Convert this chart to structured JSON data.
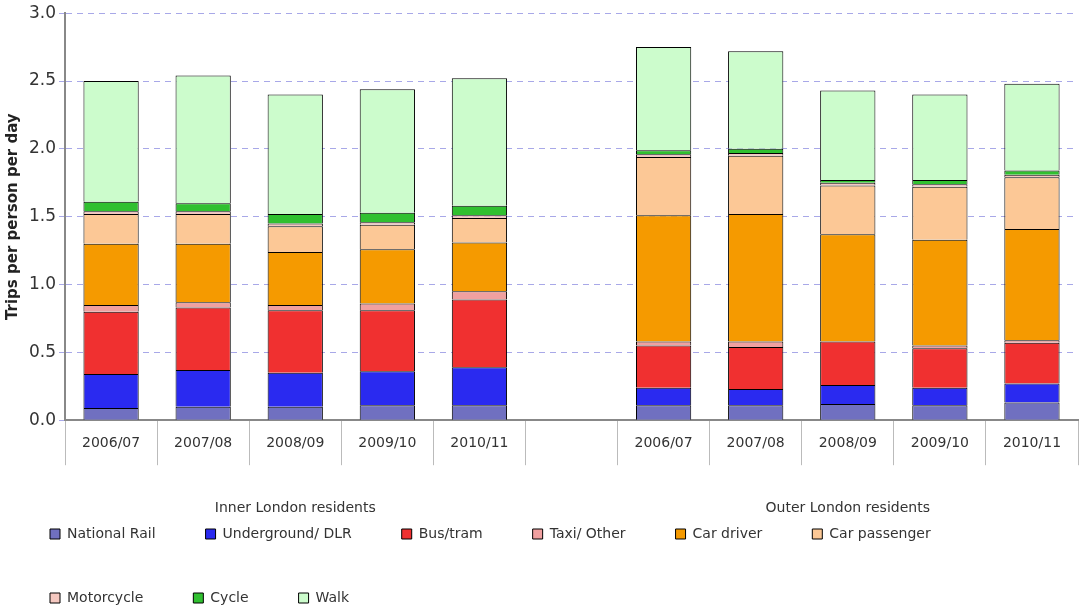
{
  "chart_data": {
    "type": "bar",
    "stacked": true,
    "ylabel": "Trips per person per day",
    "categories": [
      "2006/07",
      "2007/08",
      "2008/09",
      "2009/10",
      "2010/11",
      null,
      "2006/07",
      "2007/08",
      "2008/09",
      "2009/10",
      "2010/11"
    ],
    "series": [
      {
        "name": "National Rail",
        "color": "#7070c0",
        "values": [
          0.09,
          0.1,
          0.1,
          0.11,
          0.11,
          null,
          0.11,
          0.11,
          0.12,
          0.11,
          0.13
        ]
      },
      {
        "name": "Underground/ DLR",
        "color": "#2a2af0",
        "values": [
          0.25,
          0.27,
          0.25,
          0.25,
          0.28,
          null,
          0.13,
          0.12,
          0.14,
          0.13,
          0.14
        ]
      },
      {
        "name": "Bus/tram",
        "color": "#f03030",
        "values": [
          0.46,
          0.46,
          0.46,
          0.45,
          0.5,
          null,
          0.31,
          0.31,
          0.32,
          0.29,
          0.3
        ]
      },
      {
        "name": "Taxi/ Other",
        "color": "#f0a0a0",
        "values": [
          0.05,
          0.04,
          0.04,
          0.05,
          0.06,
          null,
          0.03,
          0.04,
          null,
          0.02,
          0.02
        ]
      },
      {
        "name": "Car driver",
        "color": "#f59a00",
        "values": [
          0.45,
          0.43,
          0.39,
          0.4,
          0.36,
          null,
          0.93,
          0.94,
          0.79,
          0.78,
          0.82
        ]
      },
      {
        "name": "Car passenger",
        "color": "#fcc896",
        "values": [
          0.22,
          0.22,
          0.19,
          0.18,
          0.18,
          null,
          0.43,
          0.43,
          0.36,
          0.39,
          0.38
        ]
      },
      {
        "name": "Motorcycle",
        "color": "#f5c8c0",
        "values": [
          0.02,
          0.02,
          0.02,
          0.02,
          0.02,
          null,
          0.02,
          0.02,
          0.02,
          0.02,
          0.02
        ]
      },
      {
        "name": "Cycle",
        "color": "#30c030",
        "values": [
          0.07,
          0.06,
          0.07,
          0.07,
          0.07,
          null,
          0.03,
          0.03,
          0.02,
          0.03,
          0.03
        ]
      },
      {
        "name": "Walk",
        "color": "#ccfccc",
        "values": [
          0.89,
          0.94,
          0.88,
          0.91,
          0.94,
          null,
          0.76,
          0.72,
          0.66,
          0.63,
          0.64
        ]
      }
    ],
    "ylim": [
      0,
      3
    ],
    "yticks": [
      {
        "value": 0,
        "label": "0.0"
      },
      {
        "value": 0.5,
        "label": "0.5"
      },
      {
        "value": 1,
        "label": "1.0"
      },
      {
        "value": 1.5,
        "label": "1.5"
      },
      {
        "value": 2,
        "label": "2.0"
      },
      {
        "value": 2.5,
        "label": "2.5"
      },
      {
        "value": 3,
        "label": "3.0"
      }
    ],
    "grid": "y",
    "legend": "bottom",
    "annotations": [
      "Inner London residents",
      "Outer London residents"
    ]
  }
}
